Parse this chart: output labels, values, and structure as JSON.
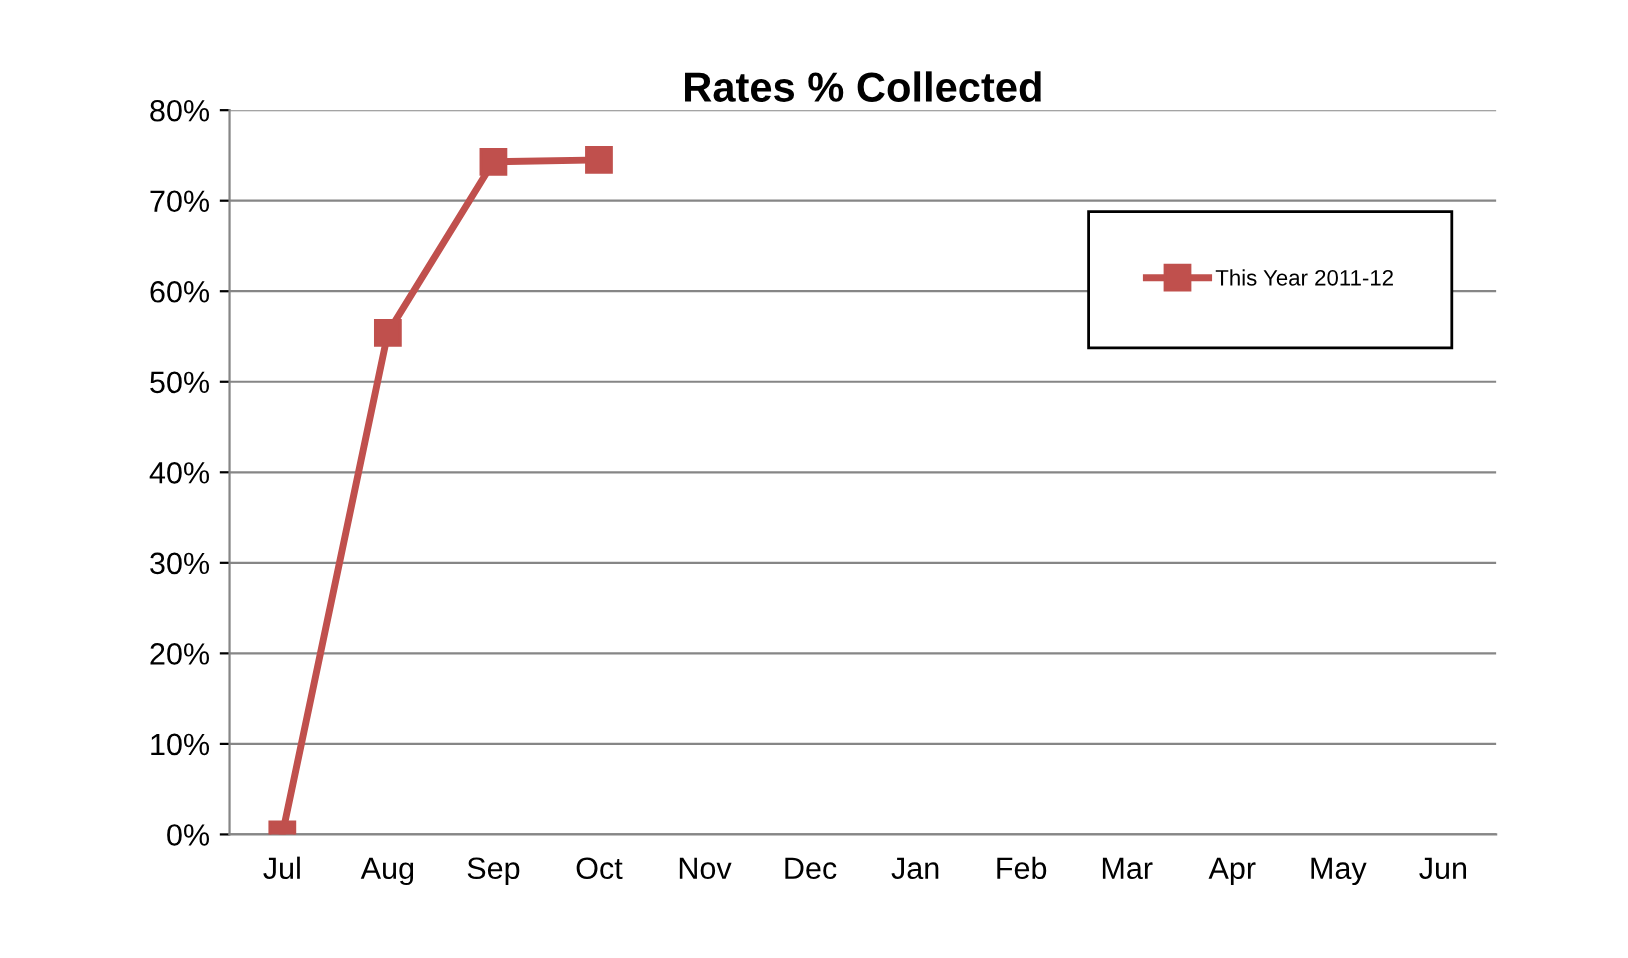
{
  "chart_data": {
    "type": "line",
    "title": "Rates % Collected",
    "categories": [
      "Jul",
      "Aug",
      "Sep",
      "Oct",
      "Nov",
      "Dec",
      "Jan",
      "Feb",
      "Mar",
      "Apr",
      "May",
      "Jun"
    ],
    "series": [
      {
        "name": "This Year 2011-12",
        "color": "#c0504d",
        "values": [
          0,
          55.4,
          74.3,
          74.5,
          null,
          null,
          null,
          null,
          null,
          null,
          null,
          null
        ]
      }
    ],
    "ylim": [
      0,
      80
    ],
    "yticks": [
      {
        "value": 0,
        "label": "0%"
      },
      {
        "value": 10,
        "label": "10%"
      },
      {
        "value": 20,
        "label": "20%"
      },
      {
        "value": 30,
        "label": "30%"
      },
      {
        "value": 40,
        "label": "40%"
      },
      {
        "value": 50,
        "label": "50%"
      },
      {
        "value": 60,
        "label": "60%"
      },
      {
        "value": 70,
        "label": "70%"
      },
      {
        "value": 80,
        "label": "80%"
      }
    ],
    "grid": "y",
    "legend": "top right",
    "marker": "square",
    "line_style": "solid"
  }
}
